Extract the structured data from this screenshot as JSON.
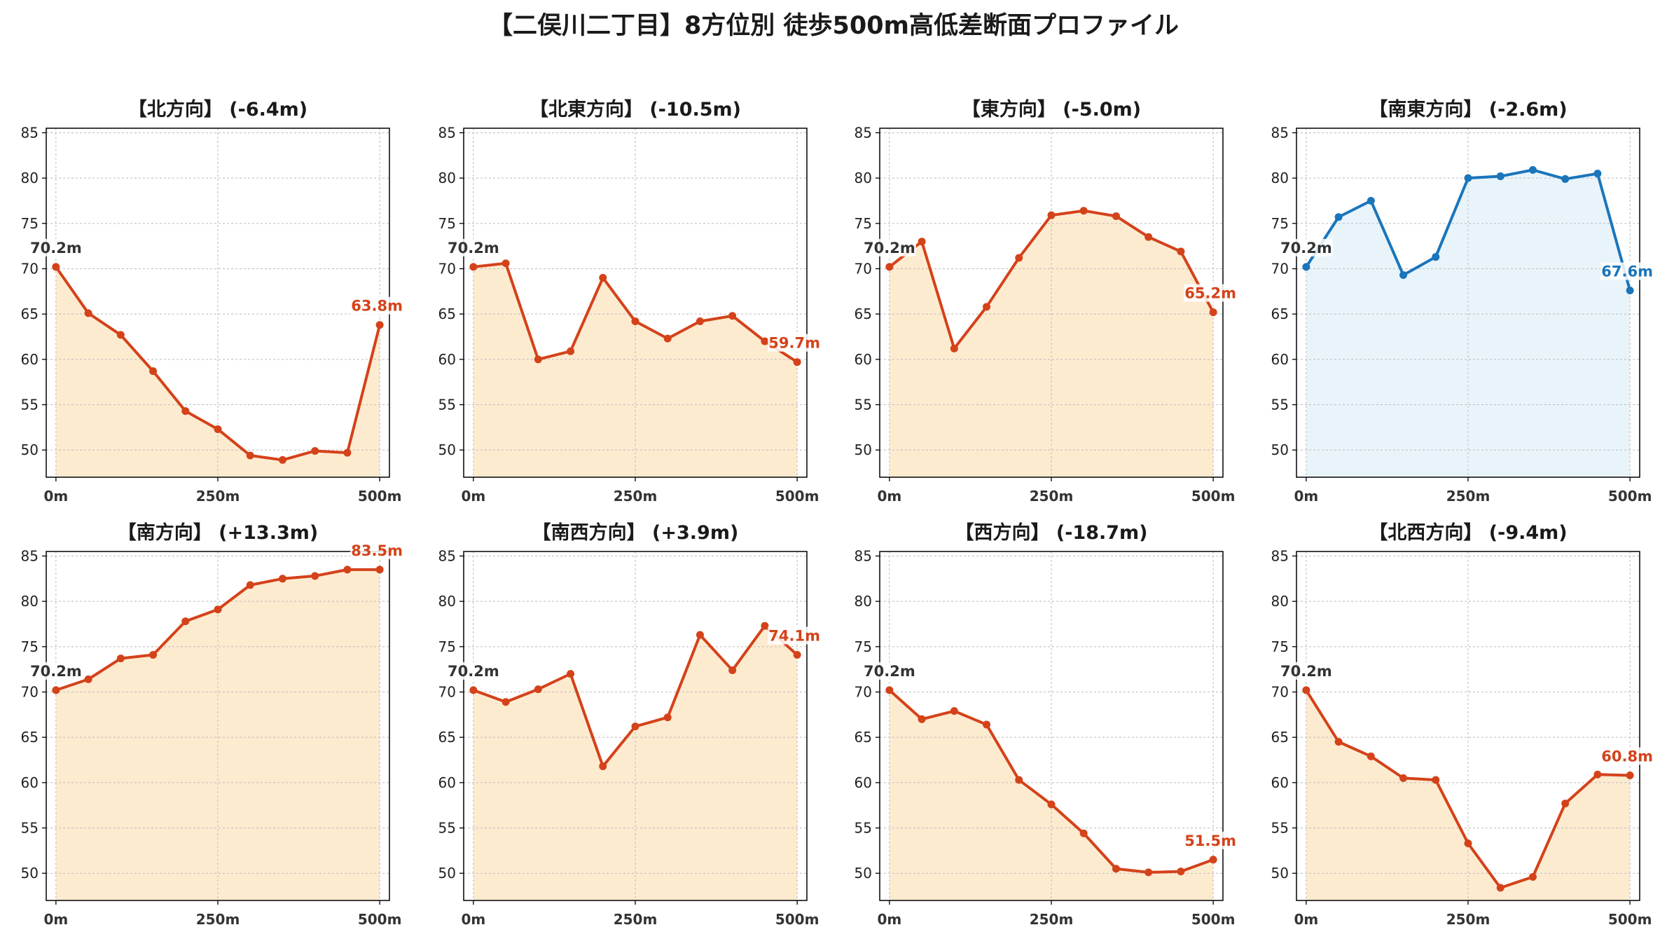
{
  "title": "【二俣川二丁目】8方位別 徒歩500m高低差断面プロファイル",
  "colors": {
    "descending": "#d4421a",
    "descending_fill": "#fdebd0",
    "ascending": "#1a75bb",
    "ascending_fill": "#e8f4fa",
    "start_label": "#333333",
    "grid": "#bbbbbb"
  },
  "chart_data": [
    {
      "type": "line",
      "title": "【北方向】 (-6.4m)",
      "style": "descending",
      "x": [
        0,
        50,
        100,
        150,
        200,
        250,
        300,
        350,
        400,
        450,
        500
      ],
      "values": [
        70.2,
        65.1,
        62.7,
        58.7,
        54.3,
        52.3,
        49.4,
        48.9,
        49.9,
        49.7,
        63.8
      ],
      "start_label": "70.2m",
      "end_label": "63.8m",
      "xticks": [
        "0m",
        "250m",
        "500m"
      ],
      "yticks": [
        50,
        55,
        60,
        65,
        70,
        75,
        80,
        85
      ],
      "ylim": [
        47,
        85.5
      ],
      "grid": true
    },
    {
      "type": "line",
      "title": "【北東方向】 (-10.5m)",
      "style": "descending",
      "x": [
        0,
        50,
        100,
        150,
        200,
        250,
        300,
        350,
        400,
        450,
        500
      ],
      "values": [
        70.2,
        70.6,
        60.0,
        60.9,
        69.0,
        64.2,
        62.3,
        64.2,
        64.8,
        62.0,
        59.7
      ],
      "start_label": "70.2m",
      "end_label": "59.7m",
      "xticks": [
        "0m",
        "250m",
        "500m"
      ],
      "yticks": [
        50,
        55,
        60,
        65,
        70,
        75,
        80,
        85
      ],
      "ylim": [
        47,
        85.5
      ],
      "grid": true
    },
    {
      "type": "line",
      "title": "【東方向】 (-5.0m)",
      "style": "descending",
      "x": [
        0,
        50,
        100,
        150,
        200,
        250,
        300,
        350,
        400,
        450,
        500
      ],
      "values": [
        70.2,
        73.0,
        61.2,
        65.8,
        71.2,
        75.9,
        76.4,
        75.8,
        73.5,
        71.9,
        65.2
      ],
      "start_label": "70.2m",
      "end_label": "65.2m",
      "xticks": [
        "0m",
        "250m",
        "500m"
      ],
      "yticks": [
        50,
        55,
        60,
        65,
        70,
        75,
        80,
        85
      ],
      "ylim": [
        47,
        85.5
      ],
      "grid": true
    },
    {
      "type": "line",
      "title": "【南東方向】 (-2.6m)",
      "style": "ascending",
      "x": [
        0,
        50,
        100,
        150,
        200,
        250,
        300,
        350,
        400,
        450,
        500
      ],
      "values": [
        70.2,
        75.7,
        77.5,
        69.3,
        71.3,
        80.0,
        80.2,
        80.9,
        79.9,
        80.5,
        67.6
      ],
      "start_label": "70.2m",
      "end_label": "67.6m",
      "xticks": [
        "0m",
        "250m",
        "500m"
      ],
      "yticks": [
        50,
        55,
        60,
        65,
        70,
        75,
        80,
        85
      ],
      "ylim": [
        47,
        85.5
      ],
      "grid": true
    },
    {
      "type": "line",
      "title": "【南方向】 (+13.3m)",
      "style": "descending",
      "x": [
        0,
        50,
        100,
        150,
        200,
        250,
        300,
        350,
        400,
        450,
        500
      ],
      "values": [
        70.2,
        71.4,
        73.7,
        74.1,
        77.8,
        79.1,
        81.8,
        82.5,
        82.8,
        83.5,
        83.5
      ],
      "start_label": "70.2m",
      "end_label": "83.5m",
      "xticks": [
        "0m",
        "250m",
        "500m"
      ],
      "yticks": [
        50,
        55,
        60,
        65,
        70,
        75,
        80,
        85
      ],
      "ylim": [
        47,
        85.5
      ],
      "grid": true
    },
    {
      "type": "line",
      "title": "【南西方向】 (+3.9m)",
      "style": "descending",
      "x": [
        0,
        50,
        100,
        150,
        200,
        250,
        300,
        350,
        400,
        450,
        500
      ],
      "values": [
        70.2,
        68.9,
        70.3,
        72.0,
        61.8,
        66.2,
        67.2,
        76.3,
        72.4,
        77.3,
        74.1
      ],
      "start_label": "70.2m",
      "end_label": "74.1m",
      "xticks": [
        "0m",
        "250m",
        "500m"
      ],
      "yticks": [
        50,
        55,
        60,
        65,
        70,
        75,
        80,
        85
      ],
      "ylim": [
        47,
        85.5
      ],
      "grid": true
    },
    {
      "type": "line",
      "title": "【西方向】 (-18.7m)",
      "style": "descending",
      "x": [
        0,
        50,
        100,
        150,
        200,
        250,
        300,
        350,
        400,
        450,
        500
      ],
      "values": [
        70.2,
        67.0,
        67.9,
        66.4,
        60.3,
        57.6,
        54.4,
        50.5,
        50.1,
        50.2,
        51.5
      ],
      "start_label": "70.2m",
      "end_label": "51.5m",
      "xticks": [
        "0m",
        "250m",
        "500m"
      ],
      "yticks": [
        50,
        55,
        60,
        65,
        70,
        75,
        80,
        85
      ],
      "ylim": [
        47,
        85.5
      ],
      "grid": true
    },
    {
      "type": "line",
      "title": "【北西方向】 (-9.4m)",
      "style": "descending",
      "x": [
        0,
        50,
        100,
        150,
        200,
        250,
        300,
        350,
        400,
        450,
        500
      ],
      "values": [
        70.2,
        64.5,
        62.9,
        60.5,
        60.3,
        53.3,
        48.4,
        49.6,
        57.7,
        60.9,
        60.8
      ],
      "start_label": "70.2m",
      "end_label": "60.8m",
      "xticks": [
        "0m",
        "250m",
        "500m"
      ],
      "yticks": [
        50,
        55,
        60,
        65,
        70,
        75,
        80,
        85
      ],
      "ylim": [
        47,
        85.5
      ],
      "grid": true
    }
  ]
}
